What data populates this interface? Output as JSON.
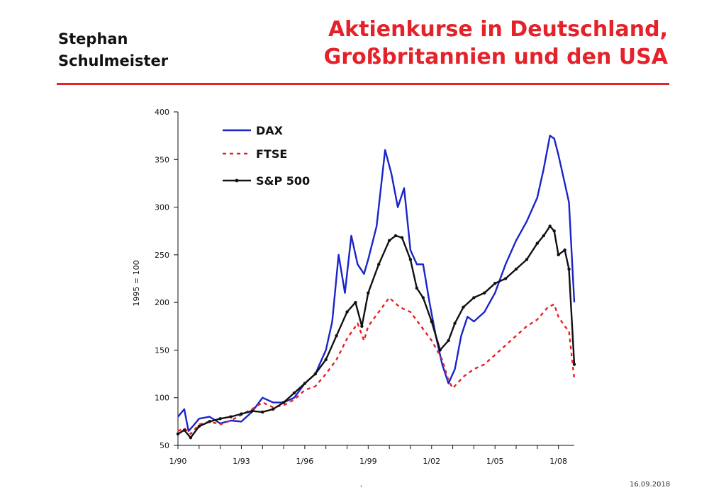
{
  "header": {
    "author_line1": "Stephan",
    "author_line2": "Schulmeister",
    "title_line1": "Aktienkurse in Deutschland,",
    "title_line2": "Großbritannien und den USA"
  },
  "footer": {
    "mark": ",",
    "date": "16.09.2018"
  },
  "colors": {
    "title": "#e42229",
    "dax": "#1a24c8",
    "ftse": "#e42229",
    "sp500": "#111111"
  },
  "chart_data": {
    "type": "line",
    "title": "",
    "xlabel": "",
    "ylabel": "1995 = 100",
    "ylim": [
      50,
      400
    ],
    "yticks": [
      50,
      100,
      150,
      200,
      250,
      300,
      350,
      400
    ],
    "xlim": [
      1990.0,
      2008.75
    ],
    "xticks": [
      {
        "value": 1990,
        "label": "1/90"
      },
      {
        "value": 1993,
        "label": "1/93"
      },
      {
        "value": 1996,
        "label": "1/96"
      },
      {
        "value": 1999,
        "label": "1/99"
      },
      {
        "value": 2002,
        "label": "1/02"
      },
      {
        "value": 2005,
        "label": "1/05"
      },
      {
        "value": 2008,
        "label": "1/08"
      }
    ],
    "legend_position": "top-left",
    "series": [
      {
        "name": "DAX",
        "style": "solid",
        "x": [
          1990.0,
          1990.3,
          1990.5,
          1990.7,
          1991.0,
          1991.5,
          1992.0,
          1992.5,
          1993.0,
          1993.5,
          1994.0,
          1994.5,
          1995.0,
          1995.5,
          1996.0,
          1996.5,
          1997.0,
          1997.3,
          1997.6,
          1997.9,
          1998.2,
          1998.5,
          1998.8,
          1999.0,
          1999.4,
          1999.8,
          2000.1,
          2000.4,
          2000.7,
          2001.0,
          2001.3,
          2001.6,
          2001.9,
          2002.2,
          2002.5,
          2002.8,
          2003.1,
          2003.4,
          2003.7,
          2004.0,
          2004.5,
          2005.0,
          2005.5,
          2006.0,
          2006.5,
          2007.0,
          2007.3,
          2007.6,
          2007.8,
          2008.0,
          2008.3,
          2008.5,
          2008.75
        ],
        "y": [
          80,
          88,
          65,
          70,
          78,
          80,
          73,
          76,
          75,
          85,
          100,
          95,
          95,
          100,
          115,
          125,
          150,
          180,
          250,
          210,
          270,
          240,
          230,
          245,
          280,
          360,
          335,
          300,
          320,
          255,
          240,
          240,
          200,
          165,
          135,
          115,
          130,
          165,
          185,
          180,
          190,
          210,
          240,
          265,
          285,
          310,
          340,
          375,
          372,
          355,
          325,
          305,
          200
        ]
      },
      {
        "name": "FTSE",
        "style": "dashed",
        "x": [
          1990.0,
          1990.3,
          1990.6,
          1991.0,
          1991.5,
          1992.0,
          1992.5,
          1993.0,
          1993.5,
          1994.0,
          1994.5,
          1995.0,
          1995.5,
          1996.0,
          1996.5,
          1997.0,
          1997.5,
          1998.0,
          1998.5,
          1998.8,
          1999.0,
          1999.5,
          2000.0,
          2000.5,
          2001.0,
          2001.5,
          2002.0,
          2002.5,
          2002.8,
          2003.0,
          2003.5,
          2004.0,
          2004.5,
          2005.0,
          2005.5,
          2006.0,
          2006.5,
          2007.0,
          2007.5,
          2007.8,
          2008.0,
          2008.3,
          2008.5,
          2008.75
        ],
        "y": [
          65,
          68,
          62,
          72,
          75,
          72,
          76,
          82,
          88,
          95,
          90,
          92,
          98,
          108,
          112,
          125,
          140,
          162,
          178,
          160,
          175,
          190,
          205,
          195,
          190,
          175,
          160,
          140,
          118,
          110,
          122,
          130,
          135,
          145,
          155,
          165,
          175,
          182,
          195,
          198,
          185,
          175,
          170,
          120
        ]
      },
      {
        "name": "S&P 500",
        "style": "solid-markers",
        "x": [
          1990.0,
          1990.3,
          1990.6,
          1991.0,
          1991.5,
          1992.0,
          1992.5,
          1993.0,
          1993.5,
          1994.0,
          1994.5,
          1995.0,
          1995.5,
          1996.0,
          1996.5,
          1997.0,
          1997.5,
          1998.0,
          1998.4,
          1998.7,
          1999.0,
          1999.5,
          2000.0,
          2000.3,
          2000.6,
          2001.0,
          2001.3,
          2001.6,
          2002.0,
          2002.4,
          2002.8,
          2003.1,
          2003.5,
          2004.0,
          2004.5,
          2005.0,
          2005.5,
          2006.0,
          2006.5,
          2007.0,
          2007.3,
          2007.6,
          2007.8,
          2008.0,
          2008.3,
          2008.5,
          2008.75
        ],
        "y": [
          62,
          66,
          58,
          70,
          75,
          78,
          80,
          83,
          86,
          85,
          88,
          95,
          105,
          115,
          125,
          140,
          165,
          190,
          200,
          175,
          210,
          240,
          265,
          270,
          268,
          245,
          215,
          205,
          180,
          150,
          160,
          178,
          195,
          205,
          210,
          220,
          225,
          235,
          245,
          262,
          270,
          280,
          275,
          250,
          255,
          235,
          135
        ]
      }
    ]
  }
}
